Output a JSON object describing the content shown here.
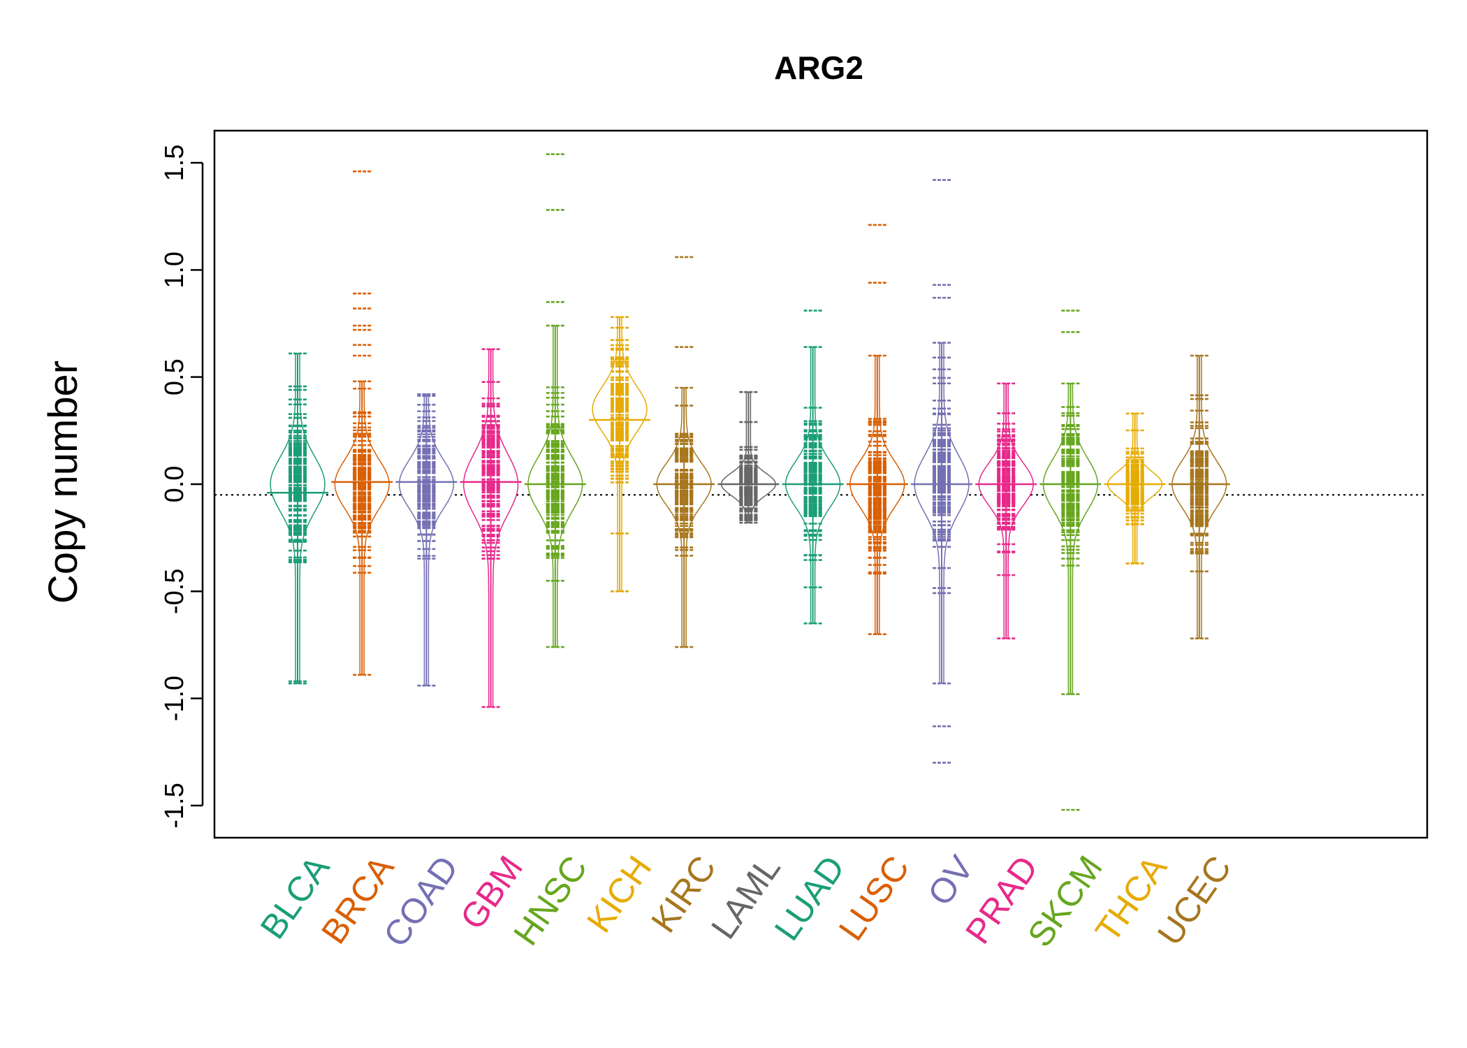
{
  "chart_data": {
    "type": "beanplot",
    "title": "ARG2",
    "xlabel": "",
    "ylabel": "Copy number",
    "ylim": [
      -1.65,
      1.65
    ],
    "yticks": [
      -1.5,
      -1.0,
      -0.5,
      0.0,
      0.5,
      1.0,
      1.5
    ],
    "ytick_labels": [
      "-1.5",
      "-1.0",
      "-0.5",
      "0.0",
      "0.5",
      "1.0",
      "1.5"
    ],
    "grid": false,
    "reference_line": -0.05,
    "categories": [
      "BLCA",
      "BRCA",
      "COAD",
      "GBM",
      "HNSC",
      "KICH",
      "KIRC",
      "LAML",
      "LUAD",
      "LUSC",
      "OV",
      "PRAD",
      "SKCM",
      "THCA",
      "UCEC"
    ],
    "colors": [
      "#1b9e77",
      "#d95f02",
      "#7570b3",
      "#e7298a",
      "#66a61e",
      "#e6ab02",
      "#a6761d",
      "#666666",
      "#1b9e77",
      "#d95f02",
      "#7570b3",
      "#e7298a",
      "#66a61e",
      "#e6ab02",
      "#a6761d"
    ],
    "series": [
      {
        "category": "BLCA",
        "min": -0.93,
        "max": 0.61,
        "mean": -0.04,
        "density_peaks": [
          0.0
        ],
        "outliers": [
          -0.93,
          -0.92
        ]
      },
      {
        "category": "BRCA",
        "min": -0.89,
        "max": 0.48,
        "mean": 0.01,
        "density_peaks": [
          0.0
        ],
        "outliers": [
          0.6,
          0.65,
          0.72,
          0.74,
          0.82,
          0.89,
          1.46
        ]
      },
      {
        "category": "COAD",
        "min": -0.94,
        "max": 0.42,
        "mean": 0.01,
        "density_peaks": [
          0.0
        ],
        "outliers": []
      },
      {
        "category": "GBM",
        "min": -1.04,
        "max": 0.63,
        "mean": 0.01,
        "density_peaks": [
          0.0
        ],
        "outliers": []
      },
      {
        "category": "HNSC",
        "min": -0.76,
        "max": 0.74,
        "mean": 0.0,
        "density_peaks": [
          0.0
        ],
        "outliers": [
          0.85,
          1.28,
          1.54
        ]
      },
      {
        "category": "KICH",
        "min": -0.5,
        "max": 0.78,
        "mean": 0.3,
        "density_peaks": [
          0.35
        ],
        "outliers": [
          -0.5,
          -0.23,
          0.73
        ]
      },
      {
        "category": "KIRC",
        "min": -0.76,
        "max": 0.45,
        "mean": 0.0,
        "density_peaks": [
          0.0
        ],
        "outliers": [
          0.64,
          1.06
        ]
      },
      {
        "category": "LAML",
        "min": -0.18,
        "max": 0.43,
        "mean": 0.0,
        "density_peaks": [
          0.0
        ],
        "outliers": [
          0.29,
          0.43
        ]
      },
      {
        "category": "LUAD",
        "min": -0.65,
        "max": 0.64,
        "mean": 0.0,
        "density_peaks": [
          0.0
        ],
        "outliers": [
          0.81
        ]
      },
      {
        "category": "LUSC",
        "min": -0.7,
        "max": 0.6,
        "mean": 0.0,
        "density_peaks": [
          0.0
        ],
        "outliers": [
          0.94,
          1.21
        ]
      },
      {
        "category": "OV",
        "min": -0.93,
        "max": 0.66,
        "mean": 0.0,
        "density_peaks": [
          0.0
        ],
        "outliers": [
          -1.3,
          -1.13,
          0.87,
          0.93,
          1.42
        ]
      },
      {
        "category": "PRAD",
        "min": -0.72,
        "max": 0.47,
        "mean": 0.0,
        "density_peaks": [
          0.0
        ],
        "outliers": []
      },
      {
        "category": "SKCM",
        "min": -0.98,
        "max": 0.47,
        "mean": 0.0,
        "density_peaks": [
          0.0
        ],
        "outliers": [
          -1.52,
          0.71,
          0.81
        ]
      },
      {
        "category": "THCA",
        "min": -0.37,
        "max": 0.33,
        "mean": 0.0,
        "density_peaks": [
          0.0
        ],
        "outliers": [
          -0.37
        ]
      },
      {
        "category": "UCEC",
        "min": -0.72,
        "max": 0.6,
        "mean": 0.0,
        "density_peaks": [
          0.0
        ],
        "outliers": []
      }
    ]
  }
}
